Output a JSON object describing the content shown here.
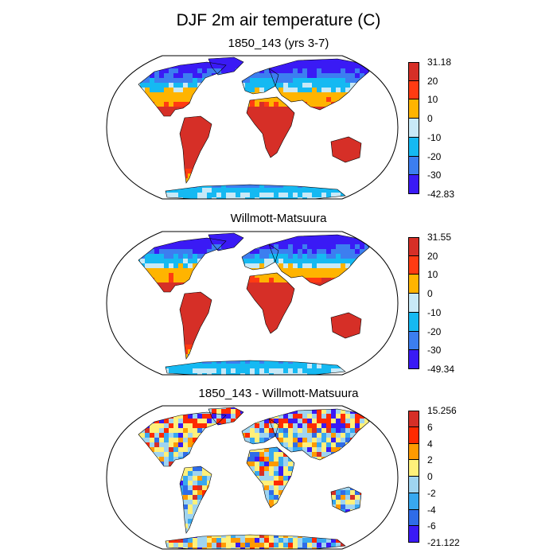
{
  "title": "DJF 2m air temperature (C)",
  "chart_data": [
    {
      "type": "heatmap",
      "title": "1850_143 (yrs 3-7)",
      "projection": "Robinson world map",
      "colorbar": {
        "labels": [
          "31.18",
          "20",
          "10",
          "0",
          "-10",
          "-20",
          "-30",
          "-42.83"
        ],
        "colors": [
          "#d62f27",
          "#ff3b12",
          "#ffb400",
          "#c8e9f7",
          "#15b9f2",
          "#3c7ef0",
          "#3a1af5"
        ],
        "max": 31.18,
        "min": -42.83
      }
    },
    {
      "type": "heatmap",
      "title": "Willmott-Matsuura",
      "projection": "Robinson world map",
      "colorbar": {
        "labels": [
          "31.55",
          "20",
          "10",
          "0",
          "-10",
          "-20",
          "-30",
          "-49.34"
        ],
        "colors": [
          "#d62f27",
          "#ff3b12",
          "#ffb400",
          "#c8e9f7",
          "#15b9f2",
          "#3c7ef0",
          "#3a1af5"
        ],
        "max": 31.55,
        "min": -49.34
      }
    },
    {
      "type": "heatmap",
      "title": "1850_143 - Willmott-Matsuura",
      "projection": "Robinson world map",
      "colorbar": {
        "labels": [
          "15.256",
          "6",
          "4",
          "2",
          "0",
          "-2",
          "-4",
          "-6",
          "-21.122"
        ],
        "colors": [
          "#d62f27",
          "#ff2a00",
          "#ff9a00",
          "#fff07a",
          "#9fd4f0",
          "#38a8f0",
          "#2f6ce8",
          "#3a1af5"
        ],
        "max": 15.256,
        "min": -21.122
      }
    }
  ]
}
